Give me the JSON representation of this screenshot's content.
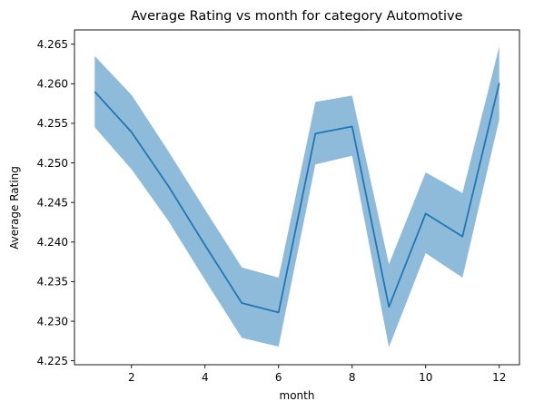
{
  "chart_data": {
    "type": "line",
    "title": "Average Rating vs month for category Automotive",
    "xlabel": "month",
    "ylabel": "Average Rating",
    "xlim": [
      0.45,
      12.55
    ],
    "ylim": [
      4.2245,
      4.2668
    ],
    "grid": false,
    "x_ticks": [
      2,
      4,
      6,
      8,
      10,
      12
    ],
    "y_ticks": [
      4.225,
      4.23,
      4.235,
      4.24,
      4.245,
      4.25,
      4.255,
      4.26,
      4.265
    ],
    "x_tick_labels": [
      "2",
      "4",
      "6",
      "8",
      "10",
      "12"
    ],
    "y_tick_labels": [
      "4.225",
      "4.230",
      "4.235",
      "4.240",
      "4.245",
      "4.250",
      "4.255",
      "4.260",
      "4.265"
    ],
    "line_color": "#1f77b4",
    "band_color": "#8fbbdb",
    "series": [
      {
        "x": [
          1,
          2,
          3,
          4,
          5,
          6,
          7,
          8,
          9,
          10,
          11,
          12
        ],
        "values": [
          4.259,
          4.2539,
          4.2471,
          4.2396,
          4.2323,
          4.2311,
          4.2537,
          4.2546,
          4.2318,
          4.2436,
          4.2407,
          4.2601
        ],
        "lower": [
          4.2545,
          4.2492,
          4.2427,
          4.2352,
          4.2279,
          4.2268,
          4.2498,
          4.2509,
          4.2267,
          4.2386,
          4.2355,
          4.2555
        ],
        "upper": [
          4.2635,
          4.2586,
          4.2515,
          4.2441,
          4.2368,
          4.2355,
          4.2577,
          4.2585,
          4.2372,
          4.2488,
          4.2462,
          4.2647
        ]
      }
    ]
  }
}
